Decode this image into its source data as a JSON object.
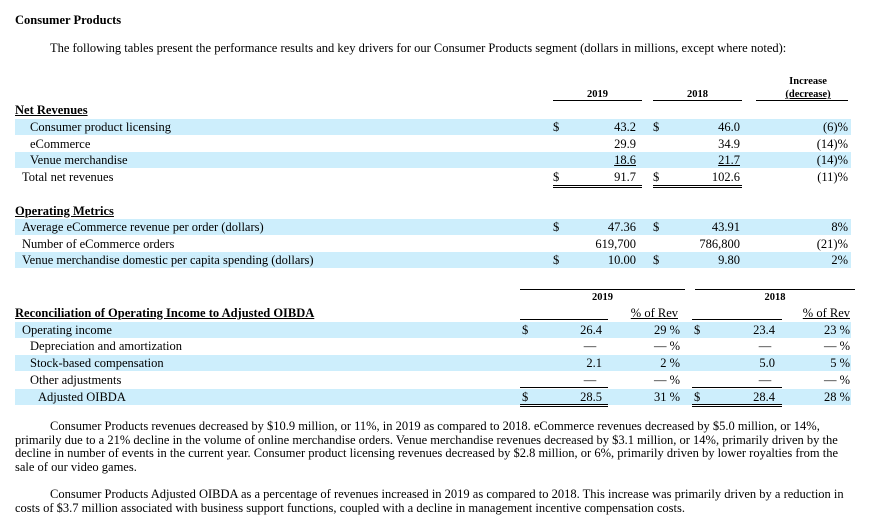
{
  "title": "Consumer Products",
  "intro": "The following tables present the performance results and key drivers for our Consumer Products segment (dollars in millions, except where noted):",
  "net_revenues": {
    "heading": "Net Revenues",
    "col_2019": "2019",
    "col_2018": "2018",
    "col_change_1": "Increase",
    "col_change_2": "(decrease)",
    "rows": [
      {
        "label": "Consumer product licensing",
        "cur1": "$",
        "v2019": "43.2",
        "cur2": "$",
        "v2018": "46.0",
        "chg": "(6)%"
      },
      {
        "label": "eCommerce",
        "cur1": "",
        "v2019": "29.9",
        "cur2": "",
        "v2018": "34.9",
        "chg": "(14)%"
      },
      {
        "label": "Venue merchandise",
        "cur1": "",
        "v2019": "18.6",
        "cur2": "",
        "v2018": "21.7",
        "chg": "(14)%"
      },
      {
        "label": "Total net revenues",
        "cur1": "$",
        "v2019": "91.7",
        "cur2": "$",
        "v2018": "102.6",
        "chg": "(11)%"
      }
    ]
  },
  "operating_metrics": {
    "heading": "Operating Metrics",
    "rows": [
      {
        "label": "Average eCommerce revenue per order (dollars)",
        "cur1": "$",
        "v2019": "47.36",
        "cur2": "$",
        "v2018": "43.91",
        "chg": "8%"
      },
      {
        "label": "Number of eCommerce orders",
        "cur1": "",
        "v2019": "619,700",
        "cur2": "",
        "v2018": "786,800",
        "chg": "(21)%"
      },
      {
        "label": "Venue merchandise domestic per capita spending (dollars)",
        "cur1": "$",
        "v2019": "10.00",
        "cur2": "$",
        "v2018": "9.80",
        "chg": "2%"
      }
    ]
  },
  "reconciliation": {
    "heading": "Reconciliation of Operating Income to Adjusted OIBDA",
    "col_2019": "2019",
    "col_2018": "2018",
    "pct_label": "% of Rev",
    "rows": [
      {
        "label": "Operating income",
        "cur1": "$",
        "v2019": "26.4",
        "p2019": "29 %",
        "cur2": "$",
        "v2018": "23.4",
        "p2018": "23 %"
      },
      {
        "label": "Depreciation and amortization",
        "cur1": "",
        "v2019": "—",
        "p2019": "— %",
        "cur2": "",
        "v2018": "—",
        "p2018": "— %"
      },
      {
        "label": "Stock-based compensation",
        "cur1": "",
        "v2019": "2.1",
        "p2019": "2 %",
        "cur2": "",
        "v2018": "5.0",
        "p2018": "5 %"
      },
      {
        "label": "Other adjustments",
        "cur1": "",
        "v2019": "—",
        "p2019": "— %",
        "cur2": "",
        "v2018": "—",
        "p2018": "— %"
      },
      {
        "label": "Adjusted OIBDA",
        "cur1": "$",
        "v2019": "28.5",
        "p2019": "31 %",
        "cur2": "$",
        "v2018": "28.4",
        "p2018": "28 %"
      }
    ]
  },
  "paragraph1": "Consumer Products revenues decreased by $10.9 million, or 11%, in 2019 as compared to 2018. eCommerce revenues decreased by $5.0 million, or 14%, primarily due to a 21% decline in the volume of online merchandise orders. Venue merchandise revenues decreased by $3.1 million, or 14%, primarily driven by the decline in number of events in the current year. Consumer product licensing revenues decreased by $2.8 million, or 6%, primarily driven by lower royalties from the sale of our video games.",
  "paragraph2": "Consumer Products Adjusted OIBDA as a percentage of revenues increased in 2019 as compared to 2018. This increase was primarily driven by a reduction in costs of $3.7 million associated with business support functions, coupled with a decline in management incentive compensation costs."
}
